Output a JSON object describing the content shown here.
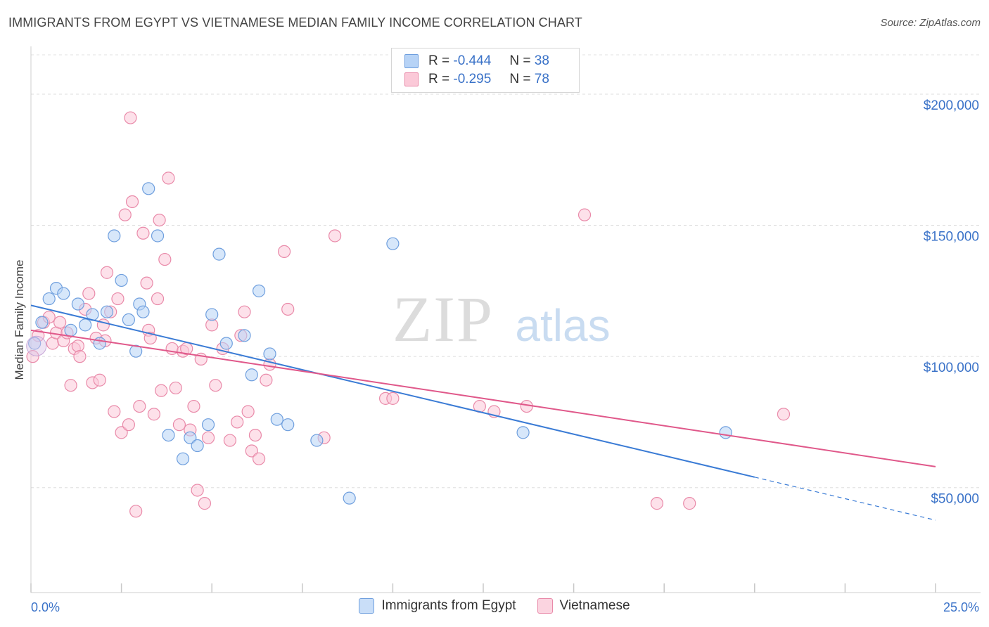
{
  "header": {
    "title": "IMMIGRANTS FROM EGYPT VS VIETNAMESE MEDIAN FAMILY INCOME CORRELATION CHART",
    "source": "Source: ZipAtlas.com"
  },
  "watermark": {
    "zip": "ZIP",
    "atlas": "atlas"
  },
  "stats_legend": [
    {
      "r_label": "R =",
      "r_value": "-0.444",
      "n_label": "N =",
      "n_value": "38",
      "fill": "#b7d3f6",
      "stroke": "#6f9fde"
    },
    {
      "r_label": "R =",
      "r_value": "-0.295",
      "n_label": "N =",
      "n_value": "78",
      "fill": "#fbc9d8",
      "stroke": "#e98aa9"
    }
  ],
  "bottom_legend": [
    {
      "label": "Immigrants from Egypt",
      "fill": "#c9def8",
      "stroke": "#6f9fde"
    },
    {
      "label": "Vietnamese",
      "fill": "#fbd4e0",
      "stroke": "#e98aa9"
    }
  ],
  "chart_data": {
    "type": "scatter",
    "ylabel": "Median Family Income",
    "xlim": [
      0,
      25
    ],
    "ylim": [
      10000,
      215000
    ],
    "x_tick_labels": [
      "0.0%",
      "25.0%"
    ],
    "y_ticks": [
      50000,
      100000,
      150000,
      200000
    ],
    "y_tick_labels": [
      "$50,000",
      "$100,000",
      "$150,000",
      "$200,000"
    ],
    "grid": true,
    "series": [
      {
        "name": "Immigrants from Egypt",
        "color": "#6f9fde",
        "fill": "#b7d3f6",
        "line_color": "#3a7bd5",
        "trend": {
          "x0": 0,
          "y0": 119500,
          "x1": 20,
          "y1": 54000,
          "x_ext": 25,
          "y_ext": 37600
        },
        "points": [
          [
            0.1,
            105000
          ],
          [
            0.3,
            113000
          ],
          [
            0.5,
            122000
          ],
          [
            0.7,
            126000
          ],
          [
            0.9,
            124000
          ],
          [
            1.1,
            110000
          ],
          [
            1.3,
            120000
          ],
          [
            1.5,
            112000
          ],
          [
            1.7,
            116000
          ],
          [
            1.9,
            105000
          ],
          [
            2.1,
            117000
          ],
          [
            2.3,
            146000
          ],
          [
            2.5,
            129000
          ],
          [
            2.7,
            114000
          ],
          [
            2.9,
            102000
          ],
          [
            3.0,
            120000
          ],
          [
            3.1,
            117000
          ],
          [
            3.25,
            164000
          ],
          [
            3.5,
            146000
          ],
          [
            3.8,
            70000
          ],
          [
            4.2,
            61000
          ],
          [
            4.4,
            69000
          ],
          [
            4.6,
            66000
          ],
          [
            4.9,
            74000
          ],
          [
            5.0,
            116000
          ],
          [
            5.2,
            139000
          ],
          [
            5.4,
            105000
          ],
          [
            5.9,
            108000
          ],
          [
            6.1,
            93000
          ],
          [
            6.3,
            125000
          ],
          [
            6.6,
            101000
          ],
          [
            6.8,
            76000
          ],
          [
            7.1,
            74000
          ],
          [
            7.9,
            68000
          ],
          [
            8.8,
            46000
          ],
          [
            10.0,
            143000
          ],
          [
            13.6,
            71000
          ],
          [
            19.2,
            71000
          ]
        ]
      },
      {
        "name": "Vietnamese",
        "color": "#e98aa9",
        "fill": "#fbc9d8",
        "line_color": "#e0588a",
        "trend": {
          "x0": 0,
          "y0": 110000,
          "x1": 25,
          "y1": 58000
        },
        "points": [
          [
            0.05,
            100000
          ],
          [
            0.2,
            108000
          ],
          [
            0.35,
            113000
          ],
          [
            0.5,
            115000
          ],
          [
            0.6,
            105000
          ],
          [
            0.7,
            109000
          ],
          [
            0.8,
            113000
          ],
          [
            0.9,
            106000
          ],
          [
            1.0,
            109000
          ],
          [
            1.1,
            89000
          ],
          [
            1.2,
            103000
          ],
          [
            1.3,
            104000
          ],
          [
            1.35,
            100000
          ],
          [
            1.5,
            118000
          ],
          [
            1.6,
            124000
          ],
          [
            1.7,
            90000
          ],
          [
            1.8,
            107000
          ],
          [
            1.9,
            91000
          ],
          [
            2.0,
            112000
          ],
          [
            2.05,
            106000
          ],
          [
            2.1,
            132000
          ],
          [
            2.2,
            117000
          ],
          [
            2.3,
            79000
          ],
          [
            2.4,
            122000
          ],
          [
            2.5,
            71000
          ],
          [
            2.6,
            154000
          ],
          [
            2.7,
            74000
          ],
          [
            2.75,
            191000
          ],
          [
            2.8,
            159000
          ],
          [
            2.9,
            41000
          ],
          [
            3.0,
            81000
          ],
          [
            3.1,
            147000
          ],
          [
            3.2,
            128000
          ],
          [
            3.25,
            110000
          ],
          [
            3.3,
            107000
          ],
          [
            3.4,
            78000
          ],
          [
            3.5,
            122000
          ],
          [
            3.55,
            152000
          ],
          [
            3.6,
            87000
          ],
          [
            3.7,
            137000
          ],
          [
            3.8,
            168000
          ],
          [
            3.9,
            103000
          ],
          [
            4.0,
            88000
          ],
          [
            4.1,
            74000
          ],
          [
            4.2,
            102000
          ],
          [
            4.3,
            103000
          ],
          [
            4.4,
            72000
          ],
          [
            4.5,
            81000
          ],
          [
            4.6,
            49000
          ],
          [
            4.7,
            99000
          ],
          [
            4.8,
            44000
          ],
          [
            4.9,
            69000
          ],
          [
            5.0,
            112000
          ],
          [
            5.1,
            89000
          ],
          [
            5.3,
            103000
          ],
          [
            5.5,
            68000
          ],
          [
            5.7,
            75000
          ],
          [
            5.8,
            108000
          ],
          [
            5.9,
            117000
          ],
          [
            6.0,
            79000
          ],
          [
            6.1,
            64000
          ],
          [
            6.2,
            70000
          ],
          [
            6.3,
            61000
          ],
          [
            6.5,
            91000
          ],
          [
            6.6,
            97000
          ],
          [
            7.0,
            140000
          ],
          [
            7.1,
            118000
          ],
          [
            8.1,
            69000
          ],
          [
            8.4,
            146000
          ],
          [
            9.8,
            84000
          ],
          [
            10.0,
            84000
          ],
          [
            12.4,
            81000
          ],
          [
            12.8,
            79000
          ],
          [
            13.7,
            81000
          ],
          [
            15.3,
            154000
          ],
          [
            17.3,
            44000
          ],
          [
            18.2,
            44000
          ],
          [
            20.8,
            78000
          ]
        ]
      }
    ]
  }
}
